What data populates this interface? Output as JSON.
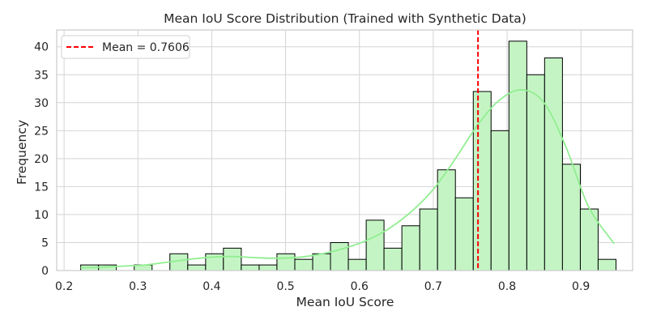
{
  "chart_data": {
    "type": "bar",
    "title": "Mean IoU Score Distribution (Trained with Synthetic Data)",
    "xlabel": "Mean IoU Score",
    "ylabel": "Frequency",
    "xlim": [
      0.19,
      0.97
    ],
    "ylim": [
      0,
      43
    ],
    "xticks": [
      0.2,
      0.3,
      0.4,
      0.5,
      0.6,
      0.7,
      0.8,
      0.9
    ],
    "xtick_labels": [
      "0.2",
      "0.3",
      "0.4",
      "0.5",
      "0.6",
      "0.7",
      "0.8",
      "0.9"
    ],
    "yticks": [
      0,
      5,
      10,
      15,
      20,
      25,
      30,
      35,
      40
    ],
    "ytick_labels": [
      "0",
      "5",
      "10",
      "15",
      "20",
      "25",
      "30",
      "35",
      "40"
    ],
    "bin_edges": [
      0.2225,
      0.2467,
      0.2708,
      0.295,
      0.3192,
      0.3433,
      0.3675,
      0.3917,
      0.4158,
      0.44,
      0.4642,
      0.4883,
      0.5125,
      0.5367,
      0.5608,
      0.585,
      0.6092,
      0.6333,
      0.6575,
      0.6817,
      0.7058,
      0.73,
      0.7542,
      0.7783,
      0.8025,
      0.8267,
      0.8508,
      0.875,
      0.8992,
      0.9233,
      0.9475
    ],
    "counts": [
      1,
      1,
      0,
      1,
      0,
      3,
      1,
      3,
      4,
      1,
      1,
      3,
      2,
      3,
      5,
      2,
      9,
      4,
      8,
      11,
      18,
      13,
      32,
      25,
      41,
      35,
      38,
      19,
      11,
      2
    ],
    "kde": {
      "x": [
        0.2225,
        0.25,
        0.28,
        0.31,
        0.34,
        0.37,
        0.4,
        0.43,
        0.46,
        0.49,
        0.52,
        0.55,
        0.58,
        0.61,
        0.64,
        0.67,
        0.7,
        0.73,
        0.76,
        0.79,
        0.82,
        0.85,
        0.88,
        0.91,
        0.945
      ],
      "y": [
        0.5,
        0.6,
        0.8,
        1.0,
        1.5,
        2.0,
        2.4,
        2.5,
        2.3,
        2.2,
        2.4,
        3.0,
        4.0,
        5.4,
        7.5,
        10.5,
        14.5,
        20.0,
        26.0,
        30.5,
        32.3,
        30.0,
        22.0,
        11.5,
        4.8
      ],
      "color": "#90ee90"
    },
    "mean_line": {
      "value": 0.7606,
      "label": "Mean = 0.7606",
      "color": "#ff0000",
      "style": "dashed"
    },
    "bar_color": "#c4f4c4",
    "bar_edge_color": "#000000",
    "grid": true,
    "legend_position": "top-left"
  }
}
